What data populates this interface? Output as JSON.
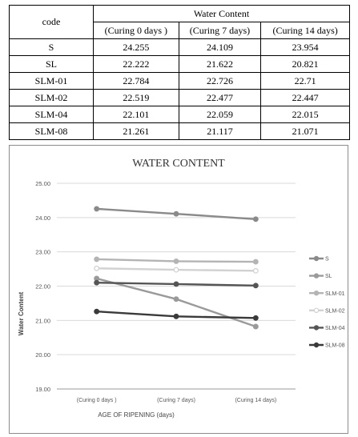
{
  "table": {
    "code_header": "code",
    "group_header": "Water Content",
    "columns": [
      "(Curing 0 days )",
      "(Curing 7 days)",
      "(Curing 14 days)"
    ],
    "rows": [
      {
        "code": "S",
        "values": [
          "24.255",
          "24.109",
          "23.954"
        ]
      },
      {
        "code": "SL",
        "values": [
          "22.222",
          "21.622",
          "20.821"
        ]
      },
      {
        "code": "SLM-01",
        "values": [
          "22.784",
          "22.726",
          "22.71"
        ]
      },
      {
        "code": "SLM-02",
        "values": [
          "22.519",
          "22.477",
          "22.447"
        ]
      },
      {
        "code": "SLM-04",
        "values": [
          "22.101",
          "22.059",
          "22.015"
        ]
      },
      {
        "code": "SLM-08",
        "values": [
          "21.261",
          "21.117",
          "21.071"
        ]
      }
    ]
  },
  "chart_data": {
    "type": "line",
    "title": "WATER CONTENT",
    "xlabel": "AGE OF RIPENING (days)",
    "ylabel": "Water Content",
    "categories": [
      "(Curing 0 days )",
      "(Curing 7 days)",
      "(Curing 14 days)"
    ],
    "ylim": [
      19,
      25
    ],
    "yticks": [
      "19.00",
      "20.00",
      "21.00",
      "22.00",
      "23.00",
      "24.00",
      "25.00"
    ],
    "grid": true,
    "legend_position": "right",
    "series": [
      {
        "name": "S",
        "values": [
          24.255,
          24.109,
          23.954
        ],
        "color": "#8a8a8a",
        "marker_fill": "#8a8a8a"
      },
      {
        "name": "SL",
        "values": [
          22.222,
          21.622,
          20.821
        ],
        "color": "#9a9a9a",
        "marker_fill": "#9a9a9a"
      },
      {
        "name": "SLM-01",
        "values": [
          22.784,
          22.726,
          22.71
        ],
        "color": "#b4b4b4",
        "marker_fill": "#b4b4b4"
      },
      {
        "name": "SLM-02",
        "values": [
          22.519,
          22.477,
          22.447
        ],
        "color": "#d2d2d2",
        "marker_fill": "#ffffff"
      },
      {
        "name": "SLM-04",
        "values": [
          22.101,
          22.059,
          22.015
        ],
        "color": "#555555",
        "marker_fill": "#555555"
      },
      {
        "name": "SLM-08",
        "values": [
          21.261,
          21.117,
          21.071
        ],
        "color": "#3a3a3a",
        "marker_fill": "#3a3a3a"
      }
    ]
  }
}
